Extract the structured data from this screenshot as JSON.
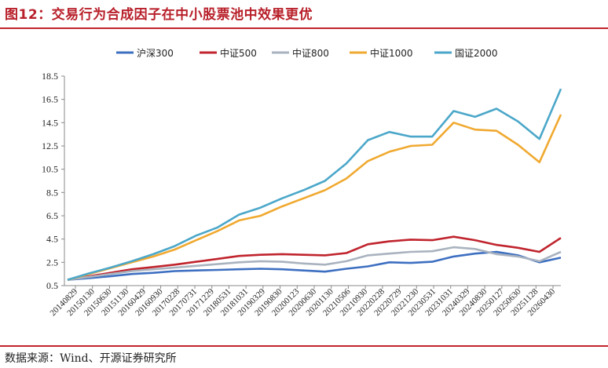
{
  "figure": {
    "title": "图12：交易行为合成因子在中小股票池中效果更优",
    "source": "数据来源：Wind、开源证券研究所"
  },
  "chart_data": {
    "type": "line",
    "ylim": [
      0.5,
      18.5
    ],
    "yticks": [
      "0.5",
      "2.5",
      "4.5",
      "6.5",
      "8.5",
      "10.5",
      "12.5",
      "14.5",
      "16.5",
      "18.5"
    ],
    "xticks": [
      "20140829",
      "20150130",
      "20150630",
      "20151130",
      "20160429",
      "20160930",
      "20170228",
      "20170731",
      "20171229",
      "20180531",
      "20181031",
      "20190329",
      "20190830",
      "20200123",
      "20200630",
      "20201130",
      "20210506",
      "20210930",
      "20220228",
      "20220729",
      "20221230",
      "20230531",
      "20231031",
      "20240329",
      "20240830",
      "20250127",
      "20250630",
      "20251128",
      "20260430"
    ],
    "n_points": 24,
    "legend_position": "top",
    "grid": false,
    "series": [
      {
        "name": "沪深300",
        "color": "#3d6fc1",
        "values": [
          1.0,
          1.15,
          1.3,
          1.5,
          1.6,
          1.75,
          1.8,
          1.85,
          1.9,
          1.95,
          1.9,
          1.8,
          1.7,
          1.95,
          2.15,
          2.5,
          2.45,
          2.55,
          3.0,
          3.25,
          3.4,
          3.1,
          2.5,
          2.9
        ]
      },
      {
        "name": "中证500",
        "color": "#c0242d",
        "values": [
          1.0,
          1.3,
          1.6,
          1.9,
          2.1,
          2.3,
          2.55,
          2.8,
          3.05,
          3.15,
          3.2,
          3.15,
          3.1,
          3.3,
          4.05,
          4.3,
          4.45,
          4.4,
          4.7,
          4.4,
          4.0,
          3.75,
          3.4,
          4.6
        ]
      },
      {
        "name": "中证800",
        "color": "#a9b3bf",
        "values": [
          1.0,
          1.25,
          1.5,
          1.75,
          1.9,
          2.05,
          2.2,
          2.35,
          2.5,
          2.6,
          2.55,
          2.4,
          2.3,
          2.6,
          3.1,
          3.25,
          3.4,
          3.45,
          3.8,
          3.65,
          3.2,
          3.0,
          2.6,
          3.4
        ]
      },
      {
        "name": "中证1000",
        "color": "#f0a930",
        "values": [
          1.0,
          1.5,
          2.0,
          2.5,
          3.0,
          3.6,
          4.4,
          5.2,
          6.1,
          6.5,
          7.3,
          8.0,
          8.7,
          9.7,
          11.2,
          12.0,
          12.5,
          12.6,
          14.5,
          13.9,
          13.8,
          12.6,
          11.1,
          15.2
        ]
      },
      {
        "name": "国证2000",
        "color": "#4ba7c9",
        "values": [
          1.0,
          1.55,
          2.05,
          2.6,
          3.2,
          3.9,
          4.8,
          5.5,
          6.6,
          7.2,
          8.0,
          8.7,
          9.5,
          11.0,
          13.0,
          13.7,
          13.3,
          13.3,
          15.5,
          15.0,
          15.7,
          14.6,
          13.1,
          17.4
        ]
      }
    ]
  }
}
